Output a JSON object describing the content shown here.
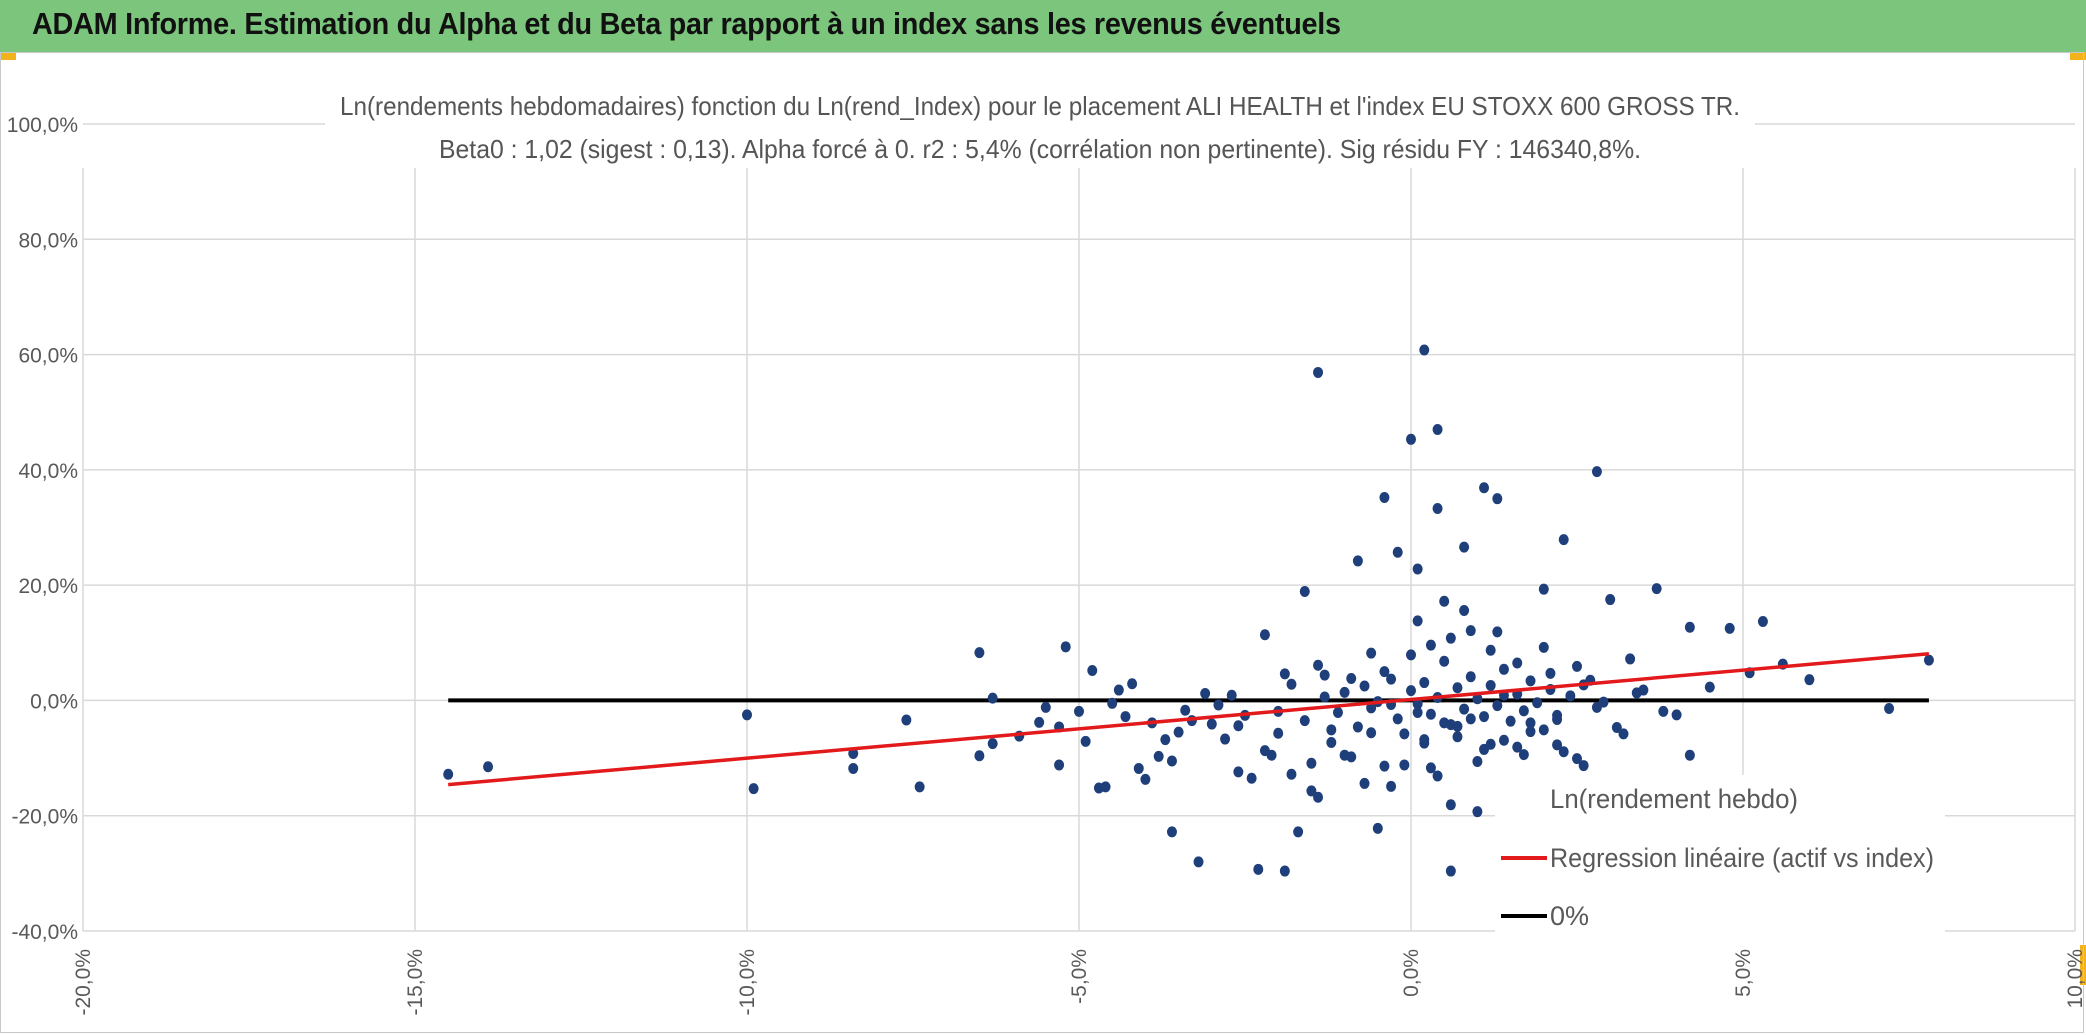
{
  "header": {
    "title": "ADAM Informe. Estimation du Alpha et du Beta par rapport à un index sans les revenus éventuels"
  },
  "colors": {
    "header_bg": "#7cc57c",
    "points": "#1f3f7a",
    "regression": "#e31a1c",
    "zero_line": "#000000",
    "grid": "#d9d9d9"
  },
  "chart_data": {
    "type": "scatter",
    "title": "Ln(rendements hebdomadaires) fonction du Ln(rend_Index) pour le placement ALI HEALTH et l'index EU STOXX 600 GROSS TR.",
    "subtitle": "Beta0 : 1,02 (sigest : 0,13). Alpha forcé à 0. r2 : 5,4% (corrélation non pertinente). Sig résidu FY : 146340,8%.",
    "xlim": [
      -20,
      10
    ],
    "ylim": [
      -40,
      100
    ],
    "x_ticks": [
      -20,
      -15,
      -10,
      -5,
      0,
      5,
      10
    ],
    "y_ticks": [
      -40,
      -20,
      0,
      20,
      40,
      60,
      80,
      100
    ],
    "x_tick_labels": [
      "-20,0%",
      "-15,0%",
      "-10,0%",
      "-5,0%",
      "0,0%",
      "5,0%",
      "10,0%"
    ],
    "y_tick_labels": [
      "-40,0%",
      "-20,0%",
      "0,0%",
      "20,0%",
      "40,0%",
      "60,0%",
      "80,0%",
      "100,0%"
    ],
    "legend": [
      {
        "label": "Ln(rendement hebdo)",
        "kind": "marker"
      },
      {
        "label": "Regression linéaire (actif vs index)",
        "kind": "line",
        "color": "#e31a1c"
      },
      {
        "label": "0%",
        "kind": "line",
        "color": "#000000"
      }
    ],
    "legend_position": "bottom-right",
    "regression_line": {
      "x": [
        -14.5,
        7.8
      ],
      "y": [
        -14.6,
        8.1
      ]
    },
    "zero_line": {
      "x": [
        -14.5,
        7.8
      ],
      "y": [
        0,
        0
      ]
    },
    "series": [
      {
        "name": "Ln(rendement hebdo)",
        "points": [
          [
            -14.5,
            -12.8
          ],
          [
            -13.9,
            -11.5
          ],
          [
            -10.0,
            -2.5
          ],
          [
            -9.9,
            -15.3
          ],
          [
            -8.4,
            -11.8
          ],
          [
            -8.4,
            -9.2
          ],
          [
            -7.6,
            -3.4
          ],
          [
            -7.4,
            -15.0
          ],
          [
            -6.5,
            8.3
          ],
          [
            -6.5,
            -9.6
          ],
          [
            -6.3,
            0.4
          ],
          [
            -6.3,
            -7.5
          ],
          [
            -5.9,
            -6.2
          ],
          [
            -5.6,
            -3.8
          ],
          [
            -5.5,
            -1.2
          ],
          [
            -5.3,
            -11.2
          ],
          [
            -5.3,
            -4.6
          ],
          [
            -5.2,
            9.3
          ],
          [
            -5.0,
            -1.9
          ],
          [
            -4.9,
            -7.1
          ],
          [
            -4.8,
            5.2
          ],
          [
            -4.7,
            -15.2
          ],
          [
            -4.6,
            -15.0
          ],
          [
            -4.5,
            -0.5
          ],
          [
            -4.4,
            1.8
          ],
          [
            -4.3,
            -2.8
          ],
          [
            -4.2,
            2.9
          ],
          [
            -4.1,
            -11.8
          ],
          [
            -4.0,
            -13.7
          ],
          [
            -3.9,
            -3.9
          ],
          [
            -3.8,
            -9.7
          ],
          [
            -3.6,
            -10.5
          ],
          [
            -3.6,
            -22.8
          ],
          [
            -3.5,
            -5.5
          ],
          [
            -3.3,
            -3.5
          ],
          [
            -3.2,
            -28.0
          ],
          [
            -3.1,
            1.2
          ],
          [
            -2.9,
            -0.8
          ],
          [
            -2.8,
            -6.7
          ],
          [
            -2.6,
            -4.4
          ],
          [
            -2.4,
            -13.5
          ],
          [
            -2.3,
            -29.3
          ],
          [
            -2.2,
            11.4
          ],
          [
            -2.1,
            -9.5
          ],
          [
            -1.9,
            -29.6
          ],
          [
            -1.9,
            4.6
          ],
          [
            -1.8,
            -12.8
          ],
          [
            -1.7,
            -22.8
          ],
          [
            -1.6,
            18.9
          ],
          [
            -1.5,
            -15.7
          ],
          [
            -1.4,
            -16.8
          ],
          [
            -1.4,
            56.9
          ],
          [
            -1.3,
            0.6
          ],
          [
            -1.2,
            -5.1
          ],
          [
            -1.0,
            -9.5
          ],
          [
            -0.8,
            24.2
          ],
          [
            -0.7,
            -14.4
          ],
          [
            -0.6,
            -5.6
          ],
          [
            -0.5,
            -22.2
          ],
          [
            -0.4,
            35.2
          ],
          [
            -0.3,
            -0.7
          ],
          [
            -0.3,
            -14.9
          ],
          [
            -0.2,
            25.7
          ],
          [
            -0.1,
            -11.2
          ],
          [
            0.0,
            45.3
          ],
          [
            0.1,
            22.8
          ],
          [
            0.1,
            -2.1
          ],
          [
            0.2,
            60.8
          ],
          [
            0.2,
            -6.8
          ],
          [
            0.3,
            -11.7
          ],
          [
            0.4,
            47.0
          ],
          [
            0.4,
            33.3
          ],
          [
            0.5,
            17.2
          ],
          [
            0.6,
            -18.1
          ],
          [
            0.6,
            -29.6
          ],
          [
            0.7,
            -4.5
          ],
          [
            0.8,
            26.6
          ],
          [
            0.9,
            -3.2
          ],
          [
            1.0,
            -19.3
          ],
          [
            1.1,
            36.9
          ],
          [
            1.2,
            -7.6
          ],
          [
            1.3,
            35.0
          ],
          [
            1.4,
            0.9
          ],
          [
            1.5,
            -16.2
          ],
          [
            1.6,
            -8.1
          ],
          [
            1.7,
            -22.2
          ],
          [
            1.8,
            -3.9
          ],
          [
            1.9,
            -18.6
          ],
          [
            2.0,
            19.3
          ],
          [
            2.1,
            4.7
          ],
          [
            2.2,
            -2.6
          ],
          [
            2.3,
            27.9
          ],
          [
            2.5,
            -10.1
          ],
          [
            2.6,
            -11.3
          ],
          [
            2.8,
            39.7
          ],
          [
            2.9,
            -0.3
          ],
          [
            3.0,
            17.5
          ],
          [
            3.2,
            -5.8
          ],
          [
            3.3,
            7.2
          ],
          [
            3.5,
            1.8
          ],
          [
            3.7,
            19.4
          ],
          [
            3.8,
            -1.9
          ],
          [
            4.0,
            -2.5
          ],
          [
            4.2,
            -9.5
          ],
          [
            4.2,
            12.7
          ],
          [
            4.5,
            2.3
          ],
          [
            4.8,
            12.5
          ],
          [
            5.1,
            4.8
          ],
          [
            5.3,
            13.7
          ],
          [
            5.6,
            6.3
          ],
          [
            6.0,
            3.6
          ],
          [
            7.2,
            -1.4
          ],
          [
            7.8,
            7.0
          ],
          [
            -0.9,
            3.8
          ],
          [
            -0.6,
            -1.3
          ],
          [
            -0.4,
            5.0
          ],
          [
            -0.2,
            -3.2
          ],
          [
            0.0,
            1.7
          ],
          [
            0.1,
            -0.6
          ],
          [
            0.2,
            3.1
          ],
          [
            0.3,
            -2.4
          ],
          [
            0.4,
            0.5
          ],
          [
            0.5,
            6.8
          ],
          [
            0.6,
            -4.2
          ],
          [
            0.7,
            2.2
          ],
          [
            0.8,
            -1.5
          ],
          [
            0.9,
            4.1
          ],
          [
            1.0,
            0.3
          ],
          [
            1.1,
            -2.8
          ],
          [
            1.2,
            2.6
          ],
          [
            1.3,
            -0.9
          ],
          [
            1.4,
            5.4
          ],
          [
            1.5,
            -3.6
          ],
          [
            1.6,
            1.1
          ],
          [
            1.7,
            -1.8
          ],
          [
            1.8,
            3.4
          ],
          [
            1.9,
            -0.4
          ],
          [
            2.0,
            -5.1
          ],
          [
            2.1,
            1.9
          ],
          [
            2.2,
            -3.3
          ],
          [
            2.4,
            0.8
          ],
          [
            2.6,
            2.7
          ],
          [
            2.8,
            -1.2
          ],
          [
            -1.1,
            -2.1
          ],
          [
            -1.0,
            1.4
          ],
          [
            -0.8,
            -4.6
          ],
          [
            -0.7,
            2.5
          ],
          [
            -0.5,
            -0.2
          ],
          [
            -0.3,
            3.7
          ],
          [
            -0.1,
            -5.8
          ],
          [
            0.0,
            7.9
          ],
          [
            0.2,
            -7.4
          ],
          [
            0.3,
            9.6
          ],
          [
            0.5,
            -3.9
          ],
          [
            0.6,
            10.8
          ],
          [
            0.7,
            -6.3
          ],
          [
            0.9,
            12.1
          ],
          [
            1.1,
            -8.5
          ],
          [
            1.2,
            8.7
          ],
          [
            1.4,
            -6.9
          ],
          [
            1.6,
            6.5
          ],
          [
            1.8,
            -5.4
          ],
          [
            2.0,
            9.2
          ],
          [
            2.2,
            -7.7
          ],
          [
            2.5,
            5.9
          ],
          [
            -1.6,
            -3.5
          ],
          [
            -1.3,
            4.4
          ],
          [
            -1.2,
            -7.3
          ],
          [
            -0.9,
            -9.8
          ],
          [
            -0.6,
            8.2
          ],
          [
            -0.4,
            -11.4
          ],
          [
            0.1,
            13.8
          ],
          [
            0.4,
            -13.1
          ],
          [
            0.8,
            15.6
          ],
          [
            1.0,
            -10.6
          ],
          [
            1.3,
            11.9
          ],
          [
            1.7,
            -9.4
          ],
          [
            2.3,
            -8.9
          ],
          [
            2.7,
            3.5
          ],
          [
            3.1,
            -4.7
          ],
          [
            3.4,
            1.3
          ],
          [
            -2.0,
            -1.9
          ],
          [
            -1.8,
            2.8
          ],
          [
            -2.5,
            -2.6
          ],
          [
            -2.7,
            0.9
          ],
          [
            -3.0,
            -4.1
          ],
          [
            -3.4,
            -1.7
          ],
          [
            -3.7,
            -6.8
          ],
          [
            -2.2,
            -8.7
          ],
          [
            -1.5,
            -10.9
          ],
          [
            -2.6,
            -12.4
          ],
          [
            -2.0,
            -5.7
          ],
          [
            -1.4,
            6.1
          ]
        ]
      }
    ]
  }
}
